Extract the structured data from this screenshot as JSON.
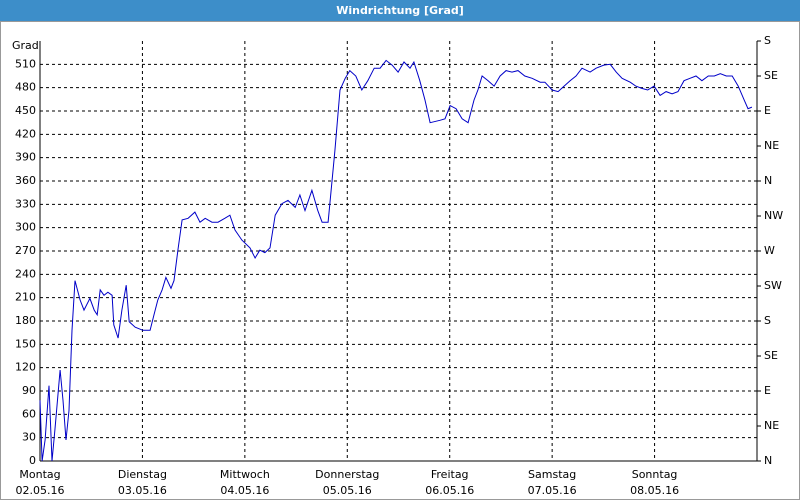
{
  "chart_data": {
    "type": "line",
    "title": "Windrichtung [Grad]",
    "y_label": "Grad",
    "xlim": [
      0,
      168
    ],
    "ylim": [
      0,
      540
    ],
    "y2lim": [
      0,
      540
    ],
    "grid": true,
    "xticks": [
      {
        "value": 0,
        "label": "Montag",
        "date": "02.05.16"
      },
      {
        "value": 24,
        "label": "Dienstag",
        "date": "03.05.16"
      },
      {
        "value": 48,
        "label": "Mittwoch",
        "date": "04.05.16"
      },
      {
        "value": 72,
        "label": "Donnerstag",
        "date": "05.05.16"
      },
      {
        "value": 96,
        "label": "Freitag",
        "date": "06.05.16"
      },
      {
        "value": 120,
        "label": "Samstag",
        "date": "07.05.16"
      },
      {
        "value": 144,
        "label": "Sonntag",
        "date": "08.05.16"
      }
    ],
    "yticks": [
      0,
      30,
      60,
      90,
      120,
      150,
      180,
      210,
      240,
      270,
      300,
      330,
      360,
      390,
      420,
      450,
      480,
      510
    ],
    "y2ticks": [
      {
        "value": 0,
        "label": "N"
      },
      {
        "value": 45,
        "label": "NE"
      },
      {
        "value": 90,
        "label": "E"
      },
      {
        "value": 135,
        "label": "SE"
      },
      {
        "value": 180,
        "label": "S"
      },
      {
        "value": 225,
        "label": "SW"
      },
      {
        "value": 270,
        "label": "W"
      },
      {
        "value": 315,
        "label": "NW"
      },
      {
        "value": 360,
        "label": "N"
      },
      {
        "value": 405,
        "label": "NE"
      },
      {
        "value": 450,
        "label": "E"
      },
      {
        "value": 495,
        "label": "SE"
      },
      {
        "value": 540,
        "label": "S"
      }
    ],
    "x": [
      0,
      0.5,
      1.2,
      2.1,
      2.8,
      3.5,
      4.7,
      5.4,
      6.1,
      6.8,
      7.5,
      8.2,
      9.4,
      10.3,
      11.7,
      12.7,
      13.4,
      14.1,
      15.0,
      15.9,
      16.9,
      17.3,
      18.3,
      19.2,
      20.2,
      20.9,
      22.3,
      24.1,
      25.8,
      26.7,
      27.6,
      28.6,
      29.5,
      30.7,
      31.4,
      32.3,
      33.3,
      34.7,
      36.3,
      37.5,
      38.7,
      40.3,
      41.7,
      43.3,
      44.5,
      45.7,
      47.3,
      49.2,
      50.4,
      51.5,
      52.7,
      53.9,
      55.1,
      56.7,
      58.1,
      59.8,
      60.9,
      62.1,
      63.7,
      65.1,
      66.1,
      67.5,
      69.1,
      70.3,
      71.5,
      72.6,
      74.0,
      75.4,
      76.8,
      78.3,
      79.7,
      81.1,
      82.5,
      83.9,
      85.3,
      86.7,
      87.6,
      89.0,
      90.2,
      91.4,
      93.7,
      94.9,
      96.1,
      97.5,
      98.9,
      100.3,
      101.7,
      102.6,
      103.6,
      105.0,
      106.4,
      107.8,
      109.2,
      110.6,
      112.0,
      113.6,
      115.3,
      117.2,
      118.3,
      120.0,
      121.4,
      122.8,
      124.2,
      125.6,
      127.0,
      128.9,
      130.3,
      132.1,
      133.6,
      135.0,
      136.4,
      138.3,
      139.6,
      141.0,
      142.4,
      143.9,
      145.3,
      146.7,
      148.1,
      149.5,
      150.9,
      152.3,
      153.7,
      155.1,
      156.6,
      158.0,
      159.4,
      160.8,
      162.2,
      163.6,
      165.0,
      165.9,
      166.8
    ],
    "series": [
      {
        "name": "Windrichtung",
        "color": "#0000c8",
        "values": [
          78,
          0,
          27,
          97,
          0,
          40,
          117,
          78,
          27,
          65,
          168,
          232,
          207,
          194,
          209,
          194,
          188,
          220,
          213,
          217,
          213,
          175,
          158,
          194,
          226,
          179,
          172,
          168,
          168,
          188,
          207,
          220,
          236,
          222,
          232,
          271,
          310,
          312,
          320,
          307,
          312,
          307,
          307,
          312,
          316,
          297,
          284,
          274,
          261,
          271,
          268,
          274,
          316,
          331,
          335,
          326,
          342,
          322,
          348,
          322,
          307,
          307,
          399,
          477,
          492,
          502,
          495,
          477,
          489,
          505,
          505,
          515,
          509,
          500,
          513,
          505,
          513,
          489,
          464,
          435,
          438,
          440,
          457,
          453,
          440,
          435,
          464,
          477,
          495,
          489,
          482,
          495,
          502,
          500,
          502,
          495,
          492,
          487,
          487,
          477,
          475,
          482,
          489,
          495,
          505,
          500,
          505,
          509,
          510,
          500,
          492,
          487,
          482,
          479,
          477,
          482,
          470,
          475,
          472,
          475,
          489,
          492,
          495,
          489,
          495,
          495,
          498,
          495,
          495,
          482,
          464,
          453,
          455
        ]
      }
    ]
  }
}
